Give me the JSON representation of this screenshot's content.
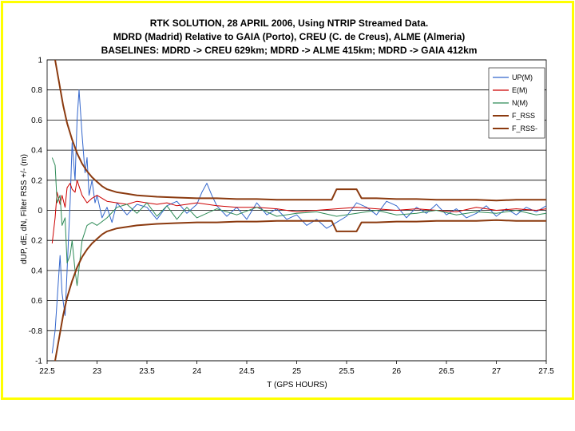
{
  "colors": {
    "frame": "#ffff00",
    "up": "#3366cc",
    "east": "#cc0000",
    "north": "#2e8b57",
    "rss": "#8b3a0f",
    "grid": "#000000"
  },
  "chart_data": {
    "type": "line",
    "title_lines": [
      "RTK SOLUTION, 28 APRIL 2006, Using NTRIP Streamed Data.",
      "MDRD (Madrid) Relative to GAIA (Porto), CREU (C. de Creus), ALME (Almeria)",
      "BASELINES: MDRD -> CREU 629km; MDRD -> ALME 415km; MDRD -> GAIA  412km"
    ],
    "xlabel": "T (GPS HOURS)",
    "ylabel": "dUP, dE, dN,  Filter RSS +/-  (m)",
    "xlim": [
      22.5,
      27.5
    ],
    "ylim": [
      -1,
      1
    ],
    "x_ticks": [
      "22.5",
      "23",
      "23.5",
      "24",
      "24.5",
      "25",
      "25.5",
      "26",
      "26.5",
      "27",
      "27.5"
    ],
    "y_ticks": [
      "1",
      "0.8",
      "0.6",
      "0.4",
      "0.2",
      "0",
      "0.2",
      "0.4",
      "0.6",
      "-0.8",
      "-1"
    ],
    "grid": "horizontal",
    "legend_position": "right",
    "legend": [
      "UP(M)",
      "E(M)",
      "N(M)",
      "F_RSS",
      "F_RSS-"
    ],
    "series": [
      {
        "name": "UP(M)",
        "x": [
          22.55,
          22.58,
          22.6,
          22.63,
          22.65,
          22.68,
          22.7,
          22.73,
          22.75,
          22.78,
          22.8,
          22.82,
          22.85,
          22.88,
          22.9,
          22.92,
          22.95,
          22.98,
          23.0,
          23.05,
          23.1,
          23.15,
          23.2,
          23.3,
          23.4,
          23.5,
          23.6,
          23.7,
          23.8,
          23.9,
          24.0,
          24.05,
          24.1,
          24.15,
          24.2,
          24.3,
          24.4,
          24.5,
          24.6,
          24.7,
          24.8,
          24.9,
          25.0,
          25.1,
          25.2,
          25.3,
          25.4,
          25.5,
          25.6,
          25.7,
          25.8,
          25.9,
          26.0,
          26.1,
          26.2,
          26.3,
          26.4,
          26.5,
          26.6,
          26.7,
          26.8,
          26.9,
          27.0,
          27.1,
          27.2,
          27.3,
          27.4,
          27.5
        ],
        "y": [
          -0.95,
          -0.8,
          -0.6,
          -0.3,
          -0.55,
          -0.7,
          -0.4,
          0.05,
          0.45,
          0.2,
          0.6,
          0.8,
          0.5,
          0.25,
          0.35,
          0.1,
          0.2,
          0.05,
          0.1,
          -0.05,
          0.02,
          -0.08,
          0.05,
          -0.03,
          0.04,
          0.02,
          -0.06,
          0.03,
          0.06,
          -0.02,
          0.04,
          0.12,
          0.18,
          0.1,
          0.03,
          -0.04,
          0.02,
          -0.06,
          0.05,
          -0.03,
          0.01,
          -0.06,
          -0.03,
          -0.1,
          -0.06,
          -0.12,
          -0.08,
          -0.04,
          0.05,
          0.02,
          -0.03,
          0.06,
          0.03,
          -0.05,
          0.02,
          -0.02,
          0.04,
          -0.03,
          0.01,
          -0.05,
          -0.02,
          0.03,
          -0.04,
          0.01,
          -0.03,
          0.02,
          -0.01,
          0.03
        ]
      },
      {
        "name": "E(M)",
        "x": [
          22.55,
          22.58,
          22.6,
          22.63,
          22.65,
          22.68,
          22.7,
          22.73,
          22.75,
          22.78,
          22.8,
          22.85,
          22.9,
          22.95,
          23.0,
          23.1,
          23.2,
          23.3,
          23.4,
          23.5,
          23.6,
          23.7,
          23.8,
          23.9,
          24.0,
          24.2,
          24.4,
          24.6,
          24.8,
          25.0,
          25.2,
          25.4,
          25.6,
          25.8,
          26.0,
          26.2,
          26.4,
          26.6,
          26.8,
          27.0,
          27.2,
          27.4,
          27.5
        ],
        "y": [
          -0.22,
          -0.05,
          0.12,
          0.04,
          0.1,
          0.02,
          0.15,
          0.18,
          0.14,
          0.12,
          0.2,
          0.1,
          0.05,
          0.08,
          0.1,
          0.06,
          0.05,
          0.04,
          0.06,
          0.05,
          0.04,
          0.05,
          0.03,
          0.04,
          0.05,
          0.03,
          0.02,
          0.02,
          0.01,
          -0.01,
          0.0,
          0.01,
          0.02,
          0.01,
          0.0,
          0.01,
          0.0,
          -0.01,
          0.02,
          0.0,
          0.01,
          0.0,
          0.01
        ]
      },
      {
        "name": "N(M)",
        "x": [
          22.55,
          22.58,
          22.6,
          22.63,
          22.65,
          22.68,
          22.7,
          22.73,
          22.75,
          22.78,
          22.8,
          22.85,
          22.9,
          22.95,
          23.0,
          23.1,
          23.2,
          23.3,
          23.4,
          23.5,
          23.6,
          23.7,
          23.8,
          23.9,
          24.0,
          24.2,
          24.4,
          24.6,
          24.8,
          25.0,
          25.2,
          25.4,
          25.6,
          25.8,
          26.0,
          26.2,
          26.4,
          26.6,
          26.8,
          27.0,
          27.2,
          27.4,
          27.5
        ],
        "y": [
          0.35,
          0.3,
          0.05,
          0.1,
          -0.1,
          -0.05,
          -0.35,
          -0.3,
          -0.2,
          -0.4,
          -0.5,
          -0.2,
          -0.1,
          -0.08,
          -0.1,
          -0.05,
          0.02,
          0.04,
          -0.02,
          0.05,
          -0.04,
          0.03,
          -0.06,
          0.02,
          -0.05,
          0.01,
          -0.03,
          0.02,
          -0.04,
          -0.02,
          -0.01,
          -0.04,
          -0.02,
          0.0,
          -0.03,
          -0.02,
          0.0,
          -0.03,
          -0.01,
          -0.02,
          0.0,
          -0.03,
          -0.02
        ]
      },
      {
        "name": "F_RSS",
        "x": [
          22.58,
          22.62,
          22.66,
          22.7,
          22.75,
          22.8,
          22.85,
          22.9,
          22.95,
          23.0,
          23.05,
          23.1,
          23.2,
          23.3,
          23.4,
          23.6,
          23.8,
          24.0,
          24.2,
          24.4,
          24.6,
          24.8,
          25.0,
          25.2,
          25.35,
          25.4,
          25.6,
          25.65,
          25.8,
          26.0,
          26.2,
          26.4,
          26.6,
          26.8,
          27.0,
          27.2,
          27.5
        ],
        "y": [
          1.0,
          0.85,
          0.7,
          0.58,
          0.47,
          0.38,
          0.31,
          0.26,
          0.22,
          0.19,
          0.16,
          0.14,
          0.12,
          0.11,
          0.1,
          0.09,
          0.085,
          0.08,
          0.08,
          0.075,
          0.075,
          0.07,
          0.07,
          0.07,
          0.07,
          0.14,
          0.14,
          0.08,
          0.08,
          0.075,
          0.075,
          0.07,
          0.07,
          0.07,
          0.065,
          0.07,
          0.07
        ]
      },
      {
        "name": "F_RSS-",
        "x": [
          22.58,
          22.62,
          22.66,
          22.7,
          22.75,
          22.8,
          22.85,
          22.9,
          22.95,
          23.0,
          23.05,
          23.1,
          23.2,
          23.3,
          23.4,
          23.6,
          23.8,
          24.0,
          24.2,
          24.4,
          24.6,
          24.8,
          25.0,
          25.2,
          25.35,
          25.4,
          25.6,
          25.65,
          25.8,
          26.0,
          26.2,
          26.4,
          26.6,
          26.8,
          27.0,
          27.2,
          27.5
        ],
        "y": [
          -1.0,
          -0.85,
          -0.7,
          -0.58,
          -0.47,
          -0.38,
          -0.31,
          -0.26,
          -0.22,
          -0.19,
          -0.16,
          -0.14,
          -0.12,
          -0.11,
          -0.1,
          -0.09,
          -0.085,
          -0.08,
          -0.08,
          -0.075,
          -0.075,
          -0.07,
          -0.07,
          -0.07,
          -0.07,
          -0.14,
          -0.14,
          -0.08,
          -0.08,
          -0.075,
          -0.075,
          -0.07,
          -0.07,
          -0.07,
          -0.065,
          -0.07,
          -0.07
        ]
      }
    ]
  }
}
